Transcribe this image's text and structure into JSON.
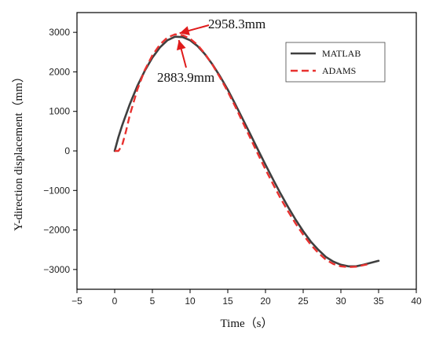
{
  "chart_data": {
    "type": "line",
    "title": "",
    "xlabel": "Time（s）",
    "ylabel": "Y-direction displacement（mm）",
    "xlim": [
      -5,
      40
    ],
    "ylim": [
      -3500,
      3500
    ],
    "xticks": [
      -5,
      0,
      5,
      10,
      15,
      20,
      25,
      30,
      35,
      40
    ],
    "yticks": [
      -3000,
      -2000,
      -1000,
      0,
      1000,
      2000,
      3000
    ],
    "grid": false,
    "legend_position": "top-right",
    "series": [
      {
        "name": "MATLAB",
        "style": "solid",
        "color": "#3f3f3f",
        "x": [
          0,
          0.5,
          1,
          2,
          3,
          4,
          5,
          6,
          7,
          8,
          9,
          10,
          11,
          12,
          13,
          14,
          15,
          16,
          17,
          18,
          19,
          20,
          21,
          22,
          23,
          24,
          25,
          26,
          27,
          28,
          29,
          30,
          31,
          32,
          33,
          34,
          35
        ],
        "y": [
          0,
          350,
          650,
          1180,
          1640,
          2030,
          2360,
          2620,
          2800,
          2890,
          2880,
          2800,
          2650,
          2440,
          2180,
          1880,
          1550,
          1180,
          800,
          420,
          30,
          -350,
          -720,
          -1080,
          -1420,
          -1740,
          -2030,
          -2290,
          -2500,
          -2680,
          -2800,
          -2880,
          -2920,
          -2920,
          -2880,
          -2830,
          -2780
        ]
      },
      {
        "name": "ADAMS",
        "style": "dashed",
        "color": "#e8312f",
        "x": [
          0,
          0.5,
          1,
          1.5,
          2,
          3,
          4,
          5,
          6,
          7,
          8,
          9,
          10,
          11,
          12,
          13,
          14,
          15,
          16,
          17,
          18,
          19,
          20,
          21,
          22,
          23,
          24,
          25,
          26,
          27,
          28,
          29,
          30,
          31,
          32,
          33,
          33.5
        ],
        "y": [
          0,
          0,
          150,
          500,
          900,
          1550,
          2050,
          2420,
          2690,
          2870,
          2950,
          2930,
          2840,
          2680,
          2450,
          2170,
          1850,
          1500,
          1120,
          720,
          320,
          -80,
          -470,
          -840,
          -1200,
          -1530,
          -1840,
          -2120,
          -2370,
          -2580,
          -2750,
          -2860,
          -2920,
          -2940,
          -2930,
          -2890,
          -2870
        ]
      }
    ],
    "annotations": [
      {
        "text": "2958.3mm",
        "x": 8.3,
        "y": 2958.3
      },
      {
        "text": "2883.9mm",
        "x": 8.3,
        "y": 2883.9
      }
    ]
  }
}
